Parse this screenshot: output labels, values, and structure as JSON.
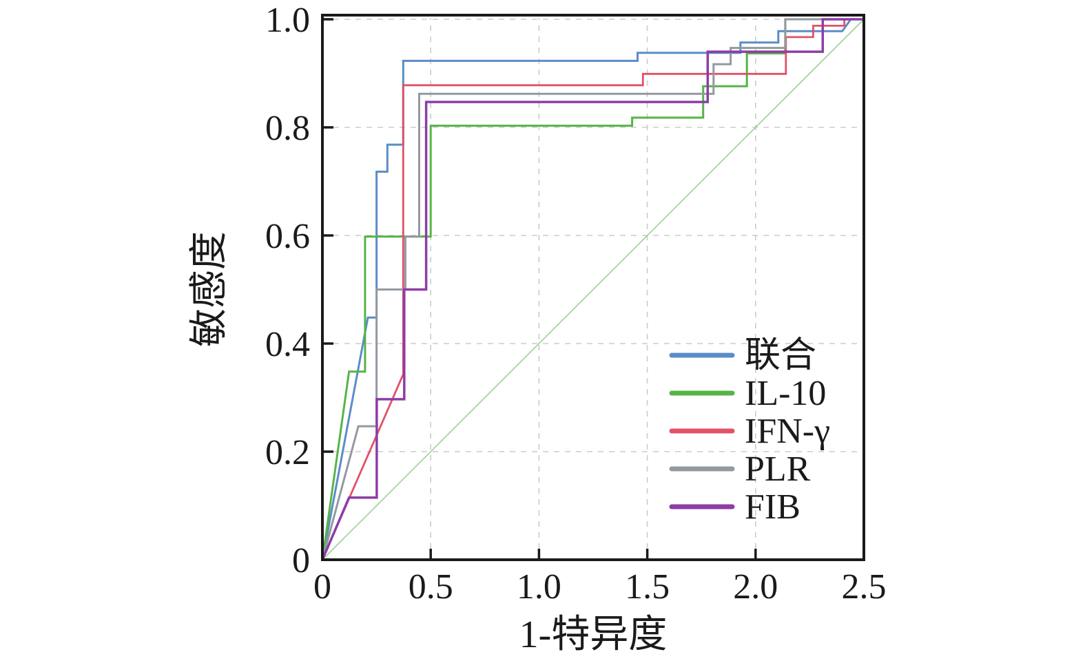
{
  "figure": {
    "kind": "ROC curve figure",
    "background": "#ffffff",
    "axis_color": "#1a1a1a"
  },
  "chart_data": {
    "type": "line",
    "subtype": "roc-step-curves",
    "title": "",
    "xlabel": "1-特异度",
    "ylabel": "敏感度",
    "xlim": [
      0,
      2.5
    ],
    "ylim": [
      0,
      1.0
    ],
    "xticks": {
      "values": [
        0,
        0.5,
        1.0,
        1.5,
        2.0,
        2.5
      ],
      "labels": [
        "0",
        "0.5",
        "1.0",
        "1.5",
        "2.0",
        "2.5"
      ]
    },
    "yticks": {
      "values": [
        0,
        0.2,
        0.4,
        0.6,
        0.8,
        1.0
      ],
      "labels": [
        "0",
        "0.2",
        "0.4",
        "0.6",
        "0.8",
        "1.0"
      ]
    },
    "grid": {
      "visible": true,
      "style": "dashed",
      "color": "#cbcbcb"
    },
    "legend_position": "inside-right",
    "reference_line": {
      "name": "chance-diagonal",
      "color": "#9bd193",
      "width": 1.6,
      "points": [
        [
          0,
          0
        ],
        [
          2.5,
          1.0
        ]
      ]
    },
    "series": [
      {
        "id": "combined",
        "label": "联合",
        "color": "#5b8cc8",
        "width": 3,
        "points": [
          [
            0,
            0
          ],
          [
            0.21,
            0.448
          ],
          [
            0.25,
            0.448
          ],
          [
            0.25,
            0.718
          ],
          [
            0.3,
            0.718
          ],
          [
            0.3,
            0.768
          ],
          [
            0.373,
            0.768
          ],
          [
            0.373,
            0.923
          ],
          [
            1.455,
            0.923
          ],
          [
            1.455,
            0.938
          ],
          [
            1.93,
            0.938
          ],
          [
            1.93,
            0.957
          ],
          [
            2.105,
            0.957
          ],
          [
            2.105,
            0.978
          ],
          [
            2.4,
            0.978
          ],
          [
            2.44,
            1.0
          ],
          [
            2.5,
            1.0
          ]
        ]
      },
      {
        "id": "il10",
        "label": "IL-10",
        "color": "#56b447",
        "width": 3,
        "points": [
          [
            0,
            0
          ],
          [
            0.123,
            0.348
          ],
          [
            0.197,
            0.348
          ],
          [
            0.197,
            0.598
          ],
          [
            0.5,
            0.598
          ],
          [
            0.5,
            0.803
          ],
          [
            1.43,
            0.803
          ],
          [
            1.43,
            0.818
          ],
          [
            1.758,
            0.818
          ],
          [
            1.758,
            0.876
          ],
          [
            1.96,
            0.876
          ],
          [
            1.96,
            0.937
          ],
          [
            2.137,
            0.937
          ],
          [
            2.137,
            1.0
          ],
          [
            2.5,
            1.0
          ]
        ]
      },
      {
        "id": "ifn-gamma",
        "label": "IFN-γ",
        "color": "#e25166",
        "width": 2.8,
        "points": [
          [
            0,
            0
          ],
          [
            0.373,
            0.343
          ],
          [
            0.373,
            0.878
          ],
          [
            1.48,
            0.878
          ],
          [
            1.48,
            0.899
          ],
          [
            2.14,
            0.899
          ],
          [
            2.14,
            0.967
          ],
          [
            2.266,
            0.967
          ],
          [
            2.266,
            0.988
          ],
          [
            2.41,
            0.988
          ],
          [
            2.41,
            1.0
          ],
          [
            2.5,
            1.0
          ]
        ]
      },
      {
        "id": "plr",
        "label": "PLR",
        "color": "#93999f",
        "width": 3,
        "points": [
          [
            0,
            0
          ],
          [
            0.166,
            0.247
          ],
          [
            0.25,
            0.247
          ],
          [
            0.25,
            0.5
          ],
          [
            0.383,
            0.5
          ],
          [
            0.383,
            0.598
          ],
          [
            0.447,
            0.598
          ],
          [
            0.447,
            0.862
          ],
          [
            1.806,
            0.862
          ],
          [
            1.806,
            0.917
          ],
          [
            1.885,
            0.917
          ],
          [
            1.885,
            0.947
          ],
          [
            2.137,
            0.947
          ],
          [
            2.137,
            1.0
          ],
          [
            2.5,
            1.0
          ]
        ]
      },
      {
        "id": "fib",
        "label": "FIB",
        "color": "#8e3ca6",
        "width": 3.5,
        "points": [
          [
            0,
            0
          ],
          [
            0.123,
            0.115
          ],
          [
            0.251,
            0.115
          ],
          [
            0.251,
            0.297
          ],
          [
            0.378,
            0.297
          ],
          [
            0.378,
            0.5
          ],
          [
            0.479,
            0.5
          ],
          [
            0.479,
            0.847
          ],
          [
            1.779,
            0.847
          ],
          [
            1.779,
            0.94
          ],
          [
            2.31,
            0.94
          ],
          [
            2.31,
            1.0
          ],
          [
            2.5,
            1.0
          ]
        ]
      }
    ]
  }
}
